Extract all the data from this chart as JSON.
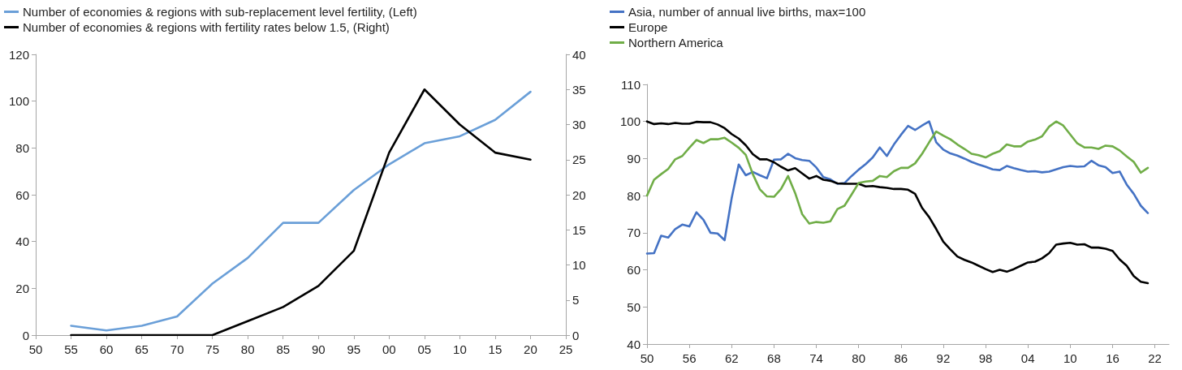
{
  "chart_data": [
    {
      "type": "line",
      "legend": "top left",
      "grid": false,
      "marker": "none",
      "line_style": "solid",
      "x": [
        1955,
        1960,
        1965,
        1970,
        1975,
        1980,
        1985,
        1990,
        1995,
        2000,
        2005,
        2010,
        2015,
        2020
      ],
      "xlim": [
        1950,
        2025
      ],
      "xticks": [
        {
          "value": 1950,
          "label": "50"
        },
        {
          "value": 1955,
          "label": "55"
        },
        {
          "value": 1960,
          "label": "60"
        },
        {
          "value": 1965,
          "label": "65"
        },
        {
          "value": 1970,
          "label": "70"
        },
        {
          "value": 1975,
          "label": "75"
        },
        {
          "value": 1980,
          "label": "80"
        },
        {
          "value": 1985,
          "label": "85"
        },
        {
          "value": 1990,
          "label": "90"
        },
        {
          "value": 1995,
          "label": "95"
        },
        {
          "value": 2000,
          "label": "00"
        },
        {
          "value": 2005,
          "label": "05"
        },
        {
          "value": 2010,
          "label": "10"
        },
        {
          "value": 2015,
          "label": "15"
        },
        {
          "value": 2020,
          "label": "20"
        },
        {
          "value": 2025,
          "label": "25"
        }
      ],
      "ylim": [
        0,
        120
      ],
      "yticks": [
        0,
        20,
        40,
        60,
        80,
        100,
        120
      ],
      "y2lim": [
        0,
        40
      ],
      "y2ticks": [
        0,
        5,
        10,
        15,
        20,
        25,
        30,
        35,
        40
      ],
      "series": [
        {
          "name": "Number of economies & regions with sub-replacement level fertility, (Left)",
          "color": "#6a9fd8",
          "values": [
            4,
            2,
            4,
            8,
            22,
            33,
            48,
            48,
            62,
            73,
            82,
            85,
            92,
            104
          ]
        },
        {
          "name": "Number of economies & regions with fertility rates below 1.5, (Right)",
          "color": "#000000",
          "axis": "y2",
          "values": [
            0,
            0,
            0,
            0,
            0,
            2,
            4,
            7,
            12,
            26,
            35,
            30,
            26,
            25
          ]
        }
      ]
    },
    {
      "type": "line",
      "legend": "top left",
      "grid": false,
      "marker": "none",
      "line_style": "solid",
      "x": [
        1950,
        1951,
        1952,
        1953,
        1954,
        1955,
        1956,
        1957,
        1958,
        1959,
        1960,
        1961,
        1962,
        1963,
        1964,
        1965,
        1966,
        1967,
        1968,
        1969,
        1970,
        1971,
        1972,
        1973,
        1974,
        1975,
        1976,
        1977,
        1978,
        1979,
        1980,
        1981,
        1982,
        1983,
        1984,
        1985,
        1986,
        1987,
        1988,
        1989,
        1990,
        1991,
        1992,
        1993,
        1994,
        1995,
        1996,
        1997,
        1998,
        1999,
        2000,
        2001,
        2002,
        2003,
        2004,
        2005,
        2006,
        2007,
        2008,
        2009,
        2010,
        2011,
        2012,
        2013,
        2014,
        2015,
        2016,
        2017,
        2018,
        2019,
        2020,
        2021
      ],
      "xlim": [
        1950,
        2024
      ],
      "xticks": [
        {
          "value": 1950,
          "label": "50"
        },
        {
          "value": 1956,
          "label": "56"
        },
        {
          "value": 1962,
          "label": "62"
        },
        {
          "value": 1968,
          "label": "68"
        },
        {
          "value": 1974,
          "label": "74"
        },
        {
          "value": 1980,
          "label": "80"
        },
        {
          "value": 1986,
          "label": "86"
        },
        {
          "value": 1992,
          "label": "92"
        },
        {
          "value": 1998,
          "label": "98"
        },
        {
          "value": 2004,
          "label": "04"
        },
        {
          "value": 2010,
          "label": "10"
        },
        {
          "value": 2016,
          "label": "16"
        },
        {
          "value": 2022,
          "label": "22"
        }
      ],
      "ylim": [
        40,
        110
      ],
      "yticks": [
        40,
        50,
        60,
        70,
        80,
        90,
        100,
        110
      ],
      "series": [
        {
          "name": "Asia, number of annual live births, max=100",
          "color": "#4472c4",
          "values": [
            64.4,
            64.5,
            69.2,
            68.7,
            71,
            72.2,
            71.7,
            75.5,
            73.5,
            70,
            69.8,
            68,
            79.3,
            88.4,
            85.5,
            86.4,
            85.5,
            84.7,
            89.7,
            89.8,
            91.3,
            90.1,
            89.6,
            89.4,
            87.6,
            85,
            84.4,
            83.2,
            83.4,
            85.3,
            87,
            88.5,
            90.3,
            93,
            90.7,
            93.8,
            96.4,
            98.8,
            97.7,
            98.9,
            100,
            94.4,
            92.4,
            91.4,
            90.8,
            90,
            89.1,
            88.4,
            87.8,
            87.1,
            86.9,
            88,
            87.4,
            86.9,
            86.5,
            86.6,
            86.3,
            86.5,
            87.1,
            87.7,
            88,
            87.8,
            87.9,
            89.4,
            88.2,
            87.7,
            86.1,
            86.5,
            83,
            80.5,
            77.3,
            75.3
          ]
        },
        {
          "name": "Europe",
          "color": "#000000",
          "values": [
            100,
            99.3,
            99.5,
            99.3,
            99.6,
            99.4,
            99.4,
            99.9,
            99.8,
            99.8,
            99.2,
            98.2,
            96.6,
            95.4,
            93.6,
            91.2,
            89.8,
            89.8,
            89,
            87.8,
            86.8,
            87.4,
            86,
            84.6,
            85.3,
            84.3,
            84,
            83.3,
            83.2,
            83.2,
            83.2,
            82.5,
            82.6,
            82.3,
            82.1,
            81.8,
            81.8,
            81.6,
            80.5,
            76.7,
            74.2,
            71,
            67.6,
            65.5,
            63.6,
            62.7,
            62,
            61.1,
            60.2,
            59.4,
            60,
            59.5,
            60.2,
            61.1,
            62,
            62.2,
            63.1,
            64.5,
            66.8,
            67.1,
            67.3,
            66.8,
            66.9,
            66,
            66,
            65.7,
            65.1,
            62.8,
            61.1,
            58.3,
            56.8,
            56.4
          ]
        },
        {
          "name": "Northern America",
          "color": "#70ad47",
          "values": [
            80,
            84.3,
            85.8,
            87.2,
            89.8,
            90.7,
            92.9,
            95,
            94.2,
            95.2,
            95.2,
            95.6,
            94.3,
            92.9,
            91,
            85.8,
            81.7,
            79.8,
            79.7,
            81.8,
            85.3,
            80.7,
            75,
            72.5,
            72.9,
            72.7,
            73.1,
            76.4,
            77.3,
            80.3,
            83.4,
            83.8,
            84,
            85.3,
            85,
            86.6,
            87.5,
            87.5,
            88.7,
            91.3,
            94.4,
            97.3,
            96.2,
            95.2,
            93.8,
            92.6,
            91.3,
            90.9,
            90.3,
            91.3,
            92,
            93.8,
            93.3,
            93.3,
            94.6,
            95.1,
            96,
            98.6,
            100,
            98.9,
            96.5,
            94.1,
            93,
            93,
            92.6,
            93.5,
            93.3,
            92.2,
            90.6,
            89.1,
            86.2,
            87.5
          ]
        }
      ]
    }
  ]
}
